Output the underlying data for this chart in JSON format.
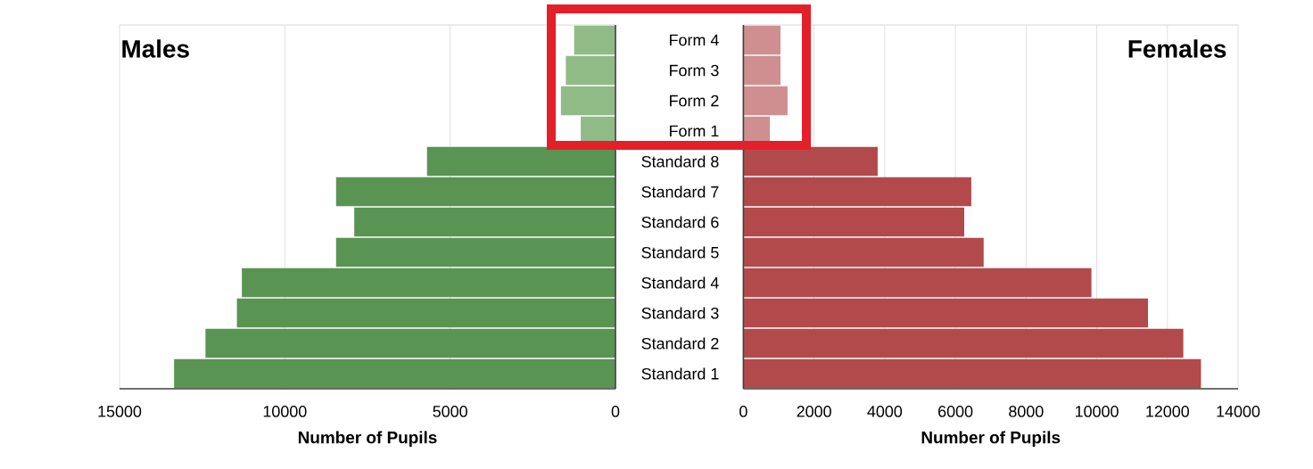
{
  "chart_data": [
    {
      "type": "bar",
      "orientation": "horizontal",
      "title": "Males",
      "xlabel": "Number of Pupils",
      "values": [
        1250,
        1500,
        1650,
        1050,
        5700,
        8450,
        7900,
        8450,
        11300,
        11450,
        12400,
        13350
      ],
      "colors": [
        "#90bb87",
        "#90bb87",
        "#90bb87",
        "#90bb87",
        "#5a9452",
        "#5a9452",
        "#5a9452",
        "#5a9452",
        "#5a9452",
        "#5a9452",
        "#5a9452",
        "#5a9452"
      ],
      "xlim": [
        15000,
        0
      ],
      "xticks": [
        15000,
        10000,
        5000,
        0
      ],
      "grid": "x",
      "tick_labels": "x"
    },
    {
      "type": "bar",
      "orientation": "horizontal",
      "title": "Females",
      "xlabel": "Number of Pupils",
      "categories": [
        "Form 4",
        "Form 3",
        "Form 2",
        "Form 1",
        "Standard 8",
        "Standard 7",
        "Standard 6",
        "Standard 5",
        "Standard 4",
        "Standard 3",
        "Standard 2",
        "Standard 1"
      ],
      "values": [
        1050,
        1050,
        1250,
        750,
        3800,
        6450,
        6250,
        6800,
        9850,
        11450,
        12450,
        12950
      ],
      "colors": [
        "#cf8f90",
        "#cf8f90",
        "#cf8f90",
        "#cf8f90",
        "#b24a4b",
        "#b24a4b",
        "#b24a4b",
        "#b24a4b",
        "#b24a4b",
        "#b24a4b",
        "#b24a4b",
        "#b24a4b"
      ],
      "xlim": [
        0,
        14000
      ],
      "xticks": [
        0,
        2000,
        4000,
        6000,
        8000,
        10000,
        12000,
        14000
      ],
      "grid": "x"
    }
  ]
}
